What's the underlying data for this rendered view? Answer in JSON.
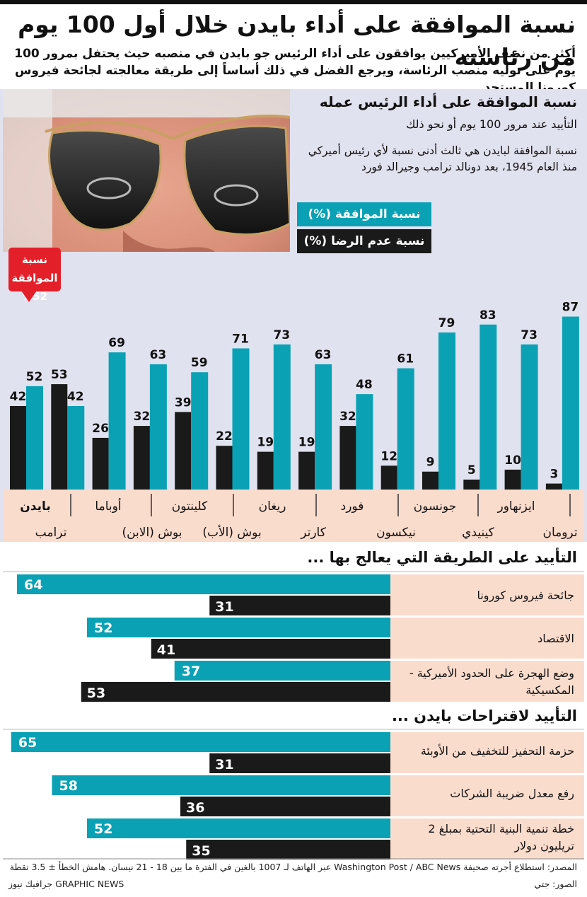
{
  "title": "نسبة الموافقة على أداء بايدن خلال أول 100 يوم من رئاسته",
  "subtitle": "أكثر من نصف الأميركيين يوافقون على أداء الرئيس جو بايدن في منصبه حيث يحتفل بمرور 100 يوم على توليه منصب الرئاسة، ويرجع الفضل في ذلك أساساً إلى طريقة معالجته لجائحة فيروس كورونا المستجد",
  "panel": {
    "title": "نسبة الموافقة على أداء الرئيس عمله",
    "sub": "التأييد عند مرور 100 يوم أو نحو ذلك",
    "note": "نسبة الموافقة لبايدن هي ثالث أدنى نسبة لأي رئيس أميركي منذ العام 1945، بعد دونالد ترامب وجيرالد فورد"
  },
  "callout": {
    "line1": "نسبة الموافقة",
    "line2": "%52"
  },
  "colors": {
    "approval": "#0aa1b5",
    "disapproval": "#1a1a1a",
    "highlight": "#e3202a",
    "band": "#fadccd",
    "panel_bg": "#e1e2ef"
  },
  "chart_data": [
    {
      "type": "bar",
      "categories": [
        "بايدن",
        "ترامب",
        "أوباما",
        "بوش (الابن)",
        "كلينتون",
        "بوش (الأب)",
        "ريغان",
        "كارتر",
        "فورد",
        "نيكسون",
        "جونسون",
        "كينيدي",
        "ايزنهاور",
        "ترومان"
      ],
      "series": [
        {
          "name": "نسبة الموافقة (%)",
          "values": [
            52,
            42,
            69,
            63,
            59,
            71,
            73,
            63,
            48,
            61,
            79,
            83,
            73,
            87
          ]
        },
        {
          "name": "نسبة عدم الرضا (%)",
          "values": [
            42,
            53,
            26,
            32,
            39,
            22,
            19,
            19,
            32,
            12,
            9,
            5,
            10,
            3
          ]
        }
      ],
      "ylim": [
        0,
        100
      ]
    },
    {
      "type": "bar",
      "title": "التأييد على الطريقة التي يعالج بها ...",
      "categories": [
        "جائحة فيروس كورونا",
        "الاقتصاد",
        "وضع الهجرة على الحدود الأميركية - المكسيكية"
      ],
      "series": [
        {
          "name": "نسبة الموافقة (%)",
          "values": [
            64,
            52,
            37
          ]
        },
        {
          "name": "نسبة عدم الرضا (%)",
          "values": [
            31,
            41,
            53
          ]
        }
      ]
    },
    {
      "type": "bar",
      "title": "التأييد لاقتراحات بايدن ...",
      "categories": [
        "حزمة التحفيز للتخفيف من الأوبئة",
        "رفع معدل ضريبة الشركات",
        "خطة تنمية البنية التحتية بمبلغ 2 تريليون دولار"
      ],
      "series": [
        {
          "name": "نسبة الموافقة (%)",
          "values": [
            65,
            58,
            52
          ]
        },
        {
          "name": "نسبة عدم الرضا (%)",
          "values": [
            31,
            36,
            35
          ]
        }
      ]
    }
  ],
  "footer": {
    "source": "المصدر: استطلاع أجرته صحيفة Washington Post / ABC News عبر الهاتف لـ 1007 بالغين في الفترة ما بين 18 - 21 نيسان. هامش الخطأ ± 3.5 نقطة",
    "photo": "الصور: جتي",
    "credit": "GRAPHIC NEWS جرافيك نيوز"
  }
}
